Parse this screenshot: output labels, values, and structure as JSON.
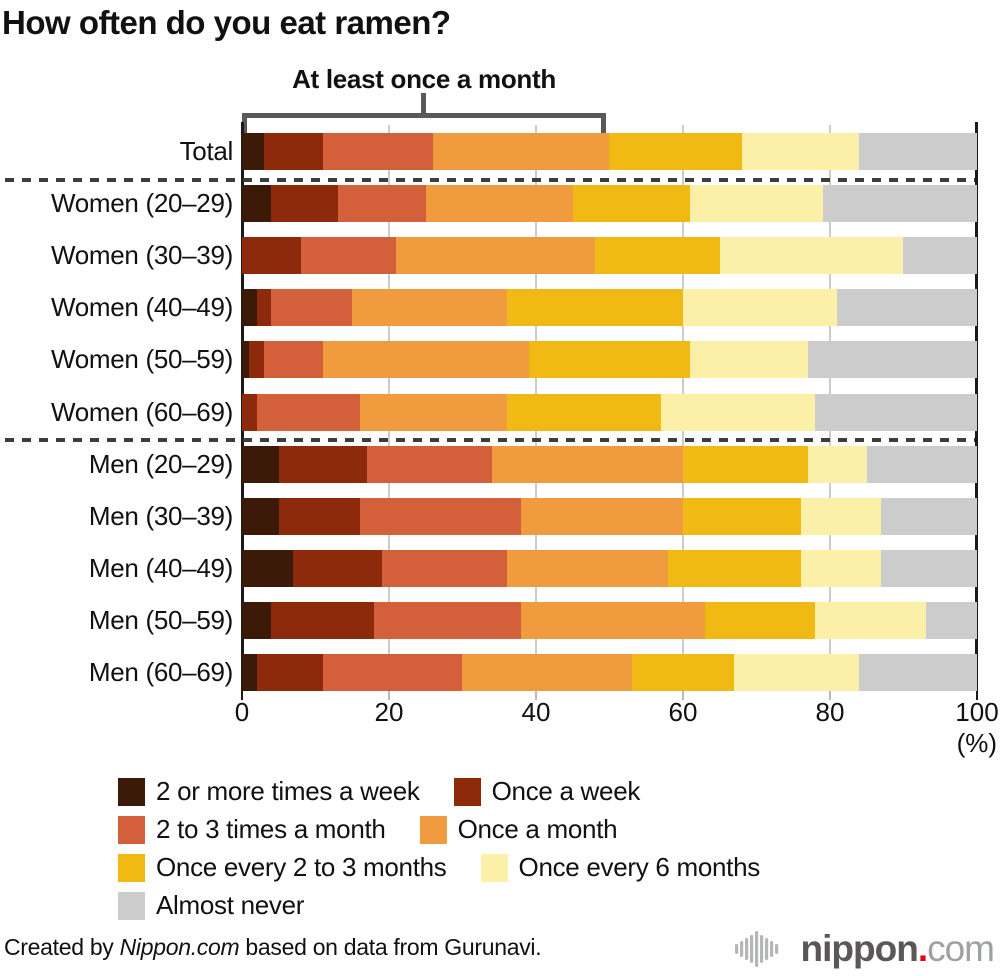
{
  "title": "How often do you eat ramen?",
  "annotation": {
    "label": "At least once a month",
    "span_start_pct": 0,
    "span_end_pct": 50
  },
  "axis": {
    "ticks": [
      0,
      20,
      40,
      60,
      80,
      100
    ],
    "unit_label": "(%)",
    "xlim": [
      0,
      100
    ]
  },
  "chart_data": {
    "type": "bar",
    "stacked": true,
    "orientation": "horizontal",
    "title": "How often do you eat ramen?",
    "xlabel": "(%)",
    "xlim": [
      0,
      100
    ],
    "grid": true,
    "legend_position": "bottom",
    "categories": [
      "Total",
      "Women (20–29)",
      "Women (30–39)",
      "Women (40–49)",
      "Women (50–59)",
      "Women (60–69)",
      "Men (20–29)",
      "Men (30–39)",
      "Men (40–49)",
      "Men (50–59)",
      "Men (60–69)"
    ],
    "separator_after_indices": [
      0,
      5
    ],
    "series": [
      {
        "name": "2 or more times a week",
        "color": "#3b1a08",
        "values": [
          3,
          4,
          0,
          2,
          1,
          0,
          5,
          5,
          7,
          4,
          2
        ]
      },
      {
        "name": "Once a week",
        "color": "#8c2a0b",
        "values": [
          8,
          9,
          8,
          2,
          2,
          2,
          12,
          11,
          12,
          14,
          9
        ]
      },
      {
        "name": "2 to 3 times a month",
        "color": "#d3603a",
        "values": [
          15,
          12,
          13,
          11,
          8,
          14,
          17,
          22,
          17,
          20,
          19
        ]
      },
      {
        "name": "Once a month",
        "color": "#f09c3e",
        "values": [
          24,
          20,
          27,
          21,
          28,
          20,
          26,
          22,
          22,
          25,
          23
        ]
      },
      {
        "name": "Once every 2 to 3 months",
        "color": "#f0b914",
        "values": [
          18,
          16,
          17,
          24,
          22,
          21,
          17,
          16,
          18,
          15,
          14
        ]
      },
      {
        "name": "Once every 6 months",
        "color": "#fcf0a8",
        "values": [
          16,
          18,
          25,
          21,
          16,
          21,
          8,
          11,
          11,
          15,
          17
        ]
      },
      {
        "name": "Almost never",
        "color": "#cccccc",
        "values": [
          16,
          21,
          10,
          19,
          23,
          22,
          15,
          13,
          13,
          7,
          16
        ]
      }
    ]
  },
  "legend_rows": [
    [
      0,
      1
    ],
    [
      2,
      3
    ],
    [
      4,
      5
    ],
    [
      6
    ]
  ],
  "footer": {
    "credit_prefix": "Created by ",
    "credit_source": "Nippon.com",
    "credit_suffix": " based on data from Gurunavi.",
    "logo_name": "nippon",
    "logo_dot": ".",
    "logo_tld": "com"
  },
  "colors": {
    "bracket": "#58595b",
    "gridline": "#cccccc",
    "axis_border": "#1a1a1a",
    "minor_tick": "#b9b9b9",
    "separator": "#3d3d3d",
    "logo_icon": "#b5b6b6",
    "logo_name": "#595757",
    "logo_dot": "#e60012",
    "logo_tld": "#9fa0a0"
  }
}
